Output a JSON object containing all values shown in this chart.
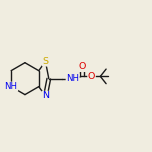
{
  "bg_color": "#f0ede0",
  "bond_color": "#1a1a1a",
  "atom_colors": {
    "S": "#ccaa00",
    "N": "#0000ee",
    "O": "#dd0000",
    "C": "#1a1a1a"
  },
  "font_size": 6.5,
  "line_width": 1.0,
  "figsize": [
    1.52,
    1.52
  ],
  "dpi": 100
}
